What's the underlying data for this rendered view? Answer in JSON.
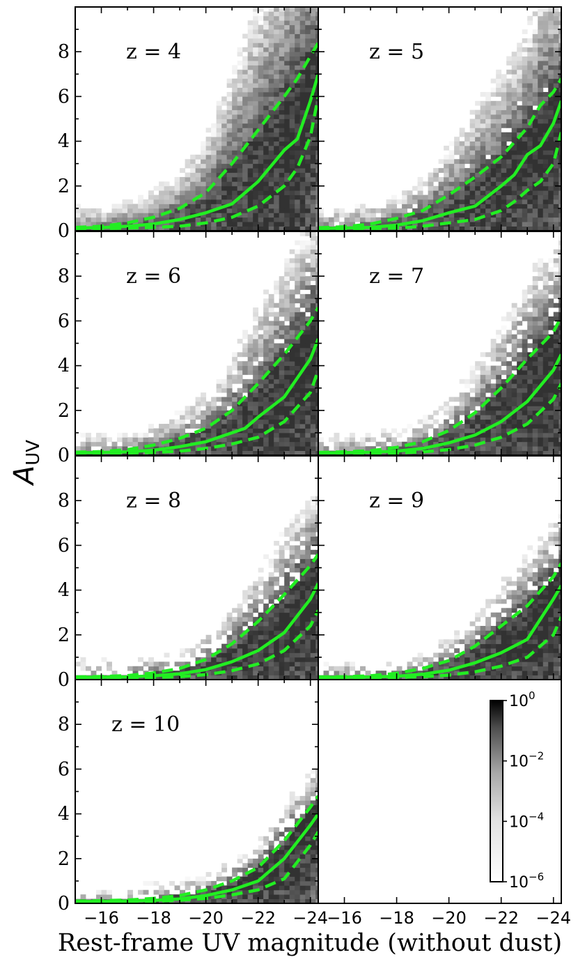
{
  "figure": {
    "xlabel": "Rest-frame UV magnitude (without dust)",
    "ylabel_main": "A",
    "ylabel_sub": "UV"
  },
  "colorbar": {
    "title": "",
    "ticks": [
      {
        "base": "10",
        "exp": "0",
        "value": 1
      },
      {
        "base": "10",
        "exp": "−2",
        "value": 0.01
      },
      {
        "base": "10",
        "exp": "−4",
        "value": 0.0001
      },
      {
        "base": "10",
        "exp": "−6",
        "value": 1e-06
      }
    ],
    "range": [
      1e-06,
      1
    ],
    "colormap": "Greys (log scale)"
  },
  "chart_data": {
    "type": "heatmap",
    "title": "",
    "xlabel": "Rest-frame UV magnitude (without dust)",
    "ylabel": "A_UV",
    "xlim": [
      -15,
      -24.3
    ],
    "ylim": [
      0,
      10
    ],
    "xticks": [
      -16,
      -18,
      -20,
      -22,
      -24
    ],
    "xtick_labels": [
      "−16",
      "−18",
      "−20",
      "−22",
      "−24"
    ],
    "yticks": [
      0,
      2,
      4,
      6,
      8
    ],
    "ytick_labels": [
      "0",
      "2",
      "4",
      "6",
      "8"
    ],
    "line_color": "#22ee22",
    "panels": [
      {
        "label": "z = 4",
        "z": 4,
        "median": [
          [
            -15,
            0.12
          ],
          [
            -16,
            0.14
          ],
          [
            -17,
            0.2
          ],
          [
            -18,
            0.3
          ],
          [
            -19,
            0.5
          ],
          [
            -20,
            0.8
          ],
          [
            -21,
            1.2
          ],
          [
            -22,
            2.2
          ],
          [
            -23,
            3.6
          ],
          [
            -23.5,
            4.1
          ],
          [
            -24,
            5.8
          ],
          [
            -24.3,
            7.0
          ]
        ],
        "upper": [
          [
            -15,
            0.15
          ],
          [
            -16,
            0.2
          ],
          [
            -17,
            0.35
          ],
          [
            -18,
            0.6
          ],
          [
            -19,
            1.0
          ],
          [
            -20,
            1.7
          ],
          [
            -21,
            3.0
          ],
          [
            -22,
            4.5
          ],
          [
            -23,
            6.0
          ],
          [
            -23.5,
            6.8
          ],
          [
            -24,
            7.8
          ],
          [
            -24.3,
            8.4
          ]
        ],
        "lower": [
          [
            -15,
            0.08
          ],
          [
            -16,
            0.09
          ],
          [
            -17,
            0.12
          ],
          [
            -18,
            0.15
          ],
          [
            -19,
            0.2
          ],
          [
            -20,
            0.35
          ],
          [
            -21,
            0.6
          ],
          [
            -22,
            1.1
          ],
          [
            -23,
            2.0
          ],
          [
            -23.5,
            2.8
          ],
          [
            -24,
            4.2
          ],
          [
            -24.3,
            6.0
          ]
        ]
      },
      {
        "label": "z = 5",
        "z": 5,
        "median": [
          [
            -15,
            0.1
          ],
          [
            -16,
            0.12
          ],
          [
            -17,
            0.15
          ],
          [
            -18,
            0.25
          ],
          [
            -19,
            0.45
          ],
          [
            -20,
            0.8
          ],
          [
            -21,
            1.1
          ],
          [
            -22,
            2.0
          ],
          [
            -22.5,
            2.5
          ],
          [
            -23,
            3.4
          ],
          [
            -23.5,
            3.8
          ],
          [
            -24,
            4.8
          ],
          [
            -24.3,
            5.8
          ]
        ],
        "upper": [
          [
            -15,
            0.13
          ],
          [
            -16,
            0.18
          ],
          [
            -17,
            0.3
          ],
          [
            -18,
            0.55
          ],
          [
            -19,
            0.9
          ],
          [
            -20,
            1.6
          ],
          [
            -21,
            2.4
          ],
          [
            -22,
            3.3
          ],
          [
            -23,
            4.6
          ],
          [
            -23.5,
            5.6
          ],
          [
            -24,
            6.2
          ],
          [
            -24.3,
            6.8
          ]
        ],
        "lower": [
          [
            -15,
            0.07
          ],
          [
            -16,
            0.08
          ],
          [
            -17,
            0.1
          ],
          [
            -18,
            0.12
          ],
          [
            -19,
            0.2
          ],
          [
            -20,
            0.35
          ],
          [
            -21,
            0.5
          ],
          [
            -22,
            0.9
          ],
          [
            -22.5,
            1.3
          ],
          [
            -23,
            1.8
          ],
          [
            -23.5,
            2.2
          ],
          [
            -24,
            3.0
          ],
          [
            -24.3,
            4.4
          ]
        ]
      },
      {
        "label": "z = 6",
        "z": 6,
        "median": [
          [
            -15,
            0.1
          ],
          [
            -16,
            0.12
          ],
          [
            -17,
            0.15
          ],
          [
            -18,
            0.22
          ],
          [
            -19,
            0.38
          ],
          [
            -20,
            0.6
          ],
          [
            -21,
            1.0
          ],
          [
            -21.5,
            1.2
          ],
          [
            -22,
            1.7
          ],
          [
            -23,
            2.6
          ],
          [
            -24,
            4.3
          ],
          [
            -24.3,
            5.2
          ]
        ],
        "upper": [
          [
            -15,
            0.13
          ],
          [
            -16,
            0.16
          ],
          [
            -17,
            0.25
          ],
          [
            -18,
            0.45
          ],
          [
            -19,
            0.75
          ],
          [
            -20,
            1.2
          ],
          [
            -21,
            2.0
          ],
          [
            -22,
            3.2
          ],
          [
            -23,
            4.5
          ],
          [
            -24,
            6.0
          ],
          [
            -24.3,
            6.6
          ]
        ],
        "lower": [
          [
            -15,
            0.07
          ],
          [
            -16,
            0.08
          ],
          [
            -17,
            0.1
          ],
          [
            -18,
            0.12
          ],
          [
            -19,
            0.18
          ],
          [
            -20,
            0.3
          ],
          [
            -21,
            0.5
          ],
          [
            -22,
            0.8
          ],
          [
            -23,
            1.5
          ],
          [
            -24,
            2.8
          ],
          [
            -24.3,
            3.8
          ]
        ]
      },
      {
        "label": "z = 7",
        "z": 7,
        "median": [
          [
            -15,
            0.1
          ],
          [
            -16,
            0.11
          ],
          [
            -17,
            0.13
          ],
          [
            -18,
            0.18
          ],
          [
            -19,
            0.3
          ],
          [
            -20,
            0.55
          ],
          [
            -21,
            0.9
          ],
          [
            -22,
            1.5
          ],
          [
            -23,
            2.4
          ],
          [
            -24,
            3.8
          ],
          [
            -24.3,
            4.5
          ]
        ],
        "upper": [
          [
            -15,
            0.12
          ],
          [
            -16,
            0.15
          ],
          [
            -17,
            0.2
          ],
          [
            -18,
            0.35
          ],
          [
            -19,
            0.6
          ],
          [
            -20,
            1.1
          ],
          [
            -21,
            1.9
          ],
          [
            -22,
            3.0
          ],
          [
            -23,
            4.3
          ],
          [
            -24,
            5.5
          ],
          [
            -24.3,
            6.2
          ]
        ],
        "lower": [
          [
            -15,
            0.07
          ],
          [
            -16,
            0.08
          ],
          [
            -17,
            0.09
          ],
          [
            -18,
            0.1
          ],
          [
            -19,
            0.15
          ],
          [
            -20,
            0.25
          ],
          [
            -21,
            0.45
          ],
          [
            -22,
            0.8
          ],
          [
            -23,
            1.4
          ],
          [
            -24,
            2.5
          ],
          [
            -24.3,
            3.2
          ]
        ]
      },
      {
        "label": "z = 8",
        "z": 8,
        "median": [
          [
            -15,
            0.1
          ],
          [
            -16,
            0.11
          ],
          [
            -17,
            0.12
          ],
          [
            -18,
            0.17
          ],
          [
            -19,
            0.26
          ],
          [
            -20,
            0.45
          ],
          [
            -21,
            0.8
          ],
          [
            -22,
            1.3
          ],
          [
            -23,
            2.1
          ],
          [
            -24,
            3.6
          ],
          [
            -24.3,
            4.3
          ]
        ],
        "upper": [
          [
            -15,
            0.12
          ],
          [
            -16,
            0.14
          ],
          [
            -17,
            0.18
          ],
          [
            -18,
            0.3
          ],
          [
            -19,
            0.5
          ],
          [
            -20,
            0.9
          ],
          [
            -21,
            1.6
          ],
          [
            -22,
            2.6
          ],
          [
            -23,
            3.8
          ],
          [
            -24,
            5.1
          ],
          [
            -24.3,
            5.6
          ]
        ],
        "lower": [
          [
            -15,
            0.07
          ],
          [
            -16,
            0.08
          ],
          [
            -17,
            0.09
          ],
          [
            -18,
            0.1
          ],
          [
            -19,
            0.13
          ],
          [
            -20,
            0.22
          ],
          [
            -21,
            0.4
          ],
          [
            -22,
            0.7
          ],
          [
            -23,
            1.3
          ],
          [
            -24,
            2.4
          ],
          [
            -24.3,
            3.1
          ]
        ]
      },
      {
        "label": "z = 9",
        "z": 9,
        "median": [
          [
            -15,
            0.1
          ],
          [
            -16,
            0.11
          ],
          [
            -17,
            0.12
          ],
          [
            -18,
            0.15
          ],
          [
            -19,
            0.24
          ],
          [
            -20,
            0.42
          ],
          [
            -21,
            0.75
          ],
          [
            -22,
            1.2
          ],
          [
            -23,
            1.8
          ],
          [
            -24,
            3.6
          ],
          [
            -24.3,
            4.2
          ]
        ],
        "upper": [
          [
            -15,
            0.12
          ],
          [
            -16,
            0.13
          ],
          [
            -17,
            0.17
          ],
          [
            -18,
            0.28
          ],
          [
            -19,
            0.5
          ],
          [
            -20,
            0.85
          ],
          [
            -21,
            1.5
          ],
          [
            -22,
            2.4
          ],
          [
            -23,
            3.3
          ],
          [
            -24,
            4.6
          ],
          [
            -24.3,
            5.2
          ]
        ],
        "lower": [
          [
            -15,
            0.07
          ],
          [
            -16,
            0.08
          ],
          [
            -17,
            0.09
          ],
          [
            -18,
            0.1
          ],
          [
            -19,
            0.13
          ],
          [
            -20,
            0.2
          ],
          [
            -21,
            0.35
          ],
          [
            -22,
            0.6
          ],
          [
            -23,
            1.0
          ],
          [
            -24,
            2.0
          ],
          [
            -24.3,
            2.8
          ]
        ]
      },
      {
        "label": "z = 10",
        "z": 10,
        "median": [
          [
            -15,
            0.08
          ],
          [
            -16,
            0.09
          ],
          [
            -17,
            0.1
          ],
          [
            -18,
            0.13
          ],
          [
            -19,
            0.2
          ],
          [
            -20,
            0.35
          ],
          [
            -21,
            0.6
          ],
          [
            -22,
            1.0
          ],
          [
            -23,
            2.0
          ],
          [
            -24,
            3.5
          ],
          [
            -24.3,
            4.0
          ]
        ],
        "upper": [
          [
            -15,
            0.1
          ],
          [
            -16,
            0.12
          ],
          [
            -17,
            0.15
          ],
          [
            -18,
            0.22
          ],
          [
            -19,
            0.35
          ],
          [
            -20,
            0.6
          ],
          [
            -21,
            1.0
          ],
          [
            -22,
            1.6
          ],
          [
            -23,
            2.8
          ],
          [
            -24,
            4.3
          ],
          [
            -24.3,
            4.8
          ]
        ],
        "lower": [
          [
            -15,
            0.06
          ],
          [
            -16,
            0.07
          ],
          [
            -17,
            0.08
          ],
          [
            -18,
            0.1
          ],
          [
            -19,
            0.14
          ],
          [
            -20,
            0.22
          ],
          [
            -21,
            0.38
          ],
          [
            -22,
            0.6
          ],
          [
            -23,
            1.1
          ],
          [
            -24,
            2.6
          ],
          [
            -24.3,
            3.2
          ]
        ]
      }
    ]
  }
}
